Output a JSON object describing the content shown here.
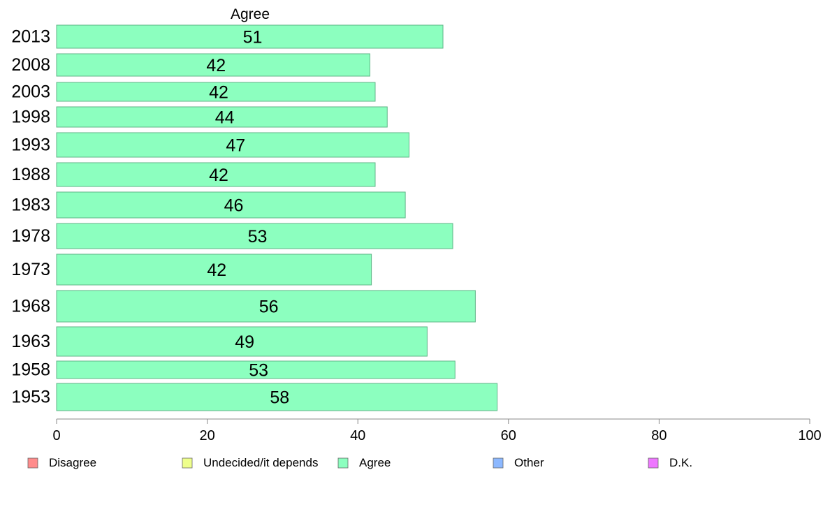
{
  "chart_data": {
    "type": "bar",
    "orientation": "horizontal",
    "title": "Agree",
    "categories": [
      "2013",
      "2008",
      "2003",
      "1998",
      "1993",
      "1988",
      "1983",
      "1978",
      "1973",
      "1968",
      "1963",
      "1958",
      "1953"
    ],
    "series": [
      {
        "name": "Agree",
        "values": [
          51.3,
          41.6,
          42.3,
          43.9,
          46.8,
          42.3,
          46.3,
          52.6,
          41.8,
          55.6,
          49.2,
          52.9,
          58.5
        ],
        "labels": [
          "51",
          "42",
          "42",
          "44",
          "47",
          "42",
          "46",
          "53",
          "42",
          "56",
          "49",
          "53",
          "58"
        ]
      }
    ],
    "xlim": [
      0,
      100
    ],
    "xticks": [
      "0",
      "20",
      "40",
      "60",
      "80",
      "100"
    ],
    "xlabel": "",
    "ylabel": "",
    "grid": false,
    "legend_position": "bottom",
    "legend": [
      {
        "label": "Disagree",
        "color": "#ff8c8c"
      },
      {
        "label": "Undecided/it depends",
        "color": "#eeff8c"
      },
      {
        "label": "Agree",
        "color": "#8cffbf"
      },
      {
        "label": "Other",
        "color": "#8cb8ff"
      },
      {
        "label": "D.K.",
        "color": "#ee77ff"
      }
    ],
    "bar_color": "#8cffbf",
    "bar_stroke": "#5fb587",
    "axis_color": "#888888"
  }
}
